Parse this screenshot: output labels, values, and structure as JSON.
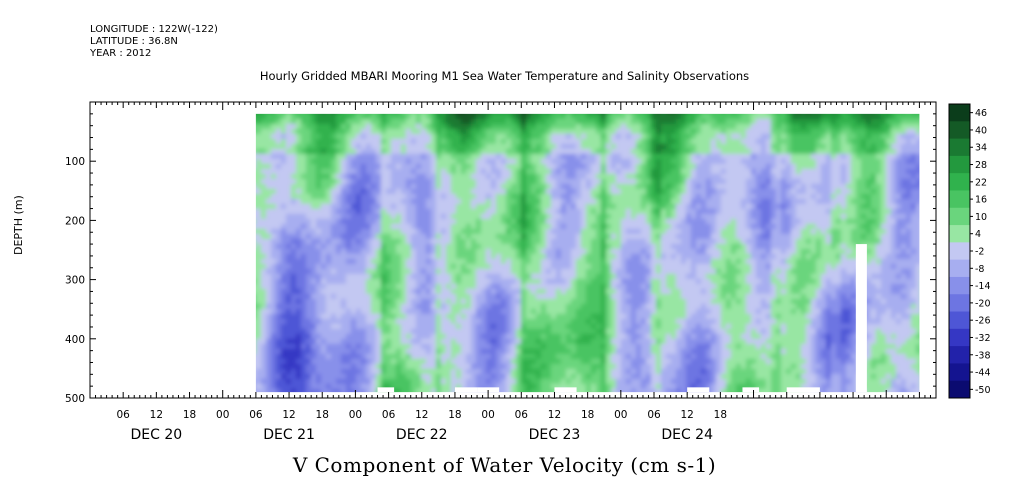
{
  "header": {
    "longitude": "LONGITUDE : 122W(-122)",
    "latitude": "LATITUDE : 36.8N",
    "year": "YEAR : 2012"
  },
  "chart_data": {
    "type": "heatmap",
    "title": "Hourly Gridded MBARI Mooring M1 Sea Water Temperature and Salinity Observations",
    "xlabel": "V Component of Water Velocity (cm s-1)",
    "ylabel": "DEPTH (m)",
    "ylim": [
      500,
      0
    ],
    "y_ticks": [
      100,
      200,
      300,
      400,
      500
    ],
    "x_hour_ticks": [
      "06",
      "12",
      "18",
      "00",
      "06",
      "12",
      "18",
      "00",
      "06",
      "12",
      "18",
      "00",
      "06",
      "12",
      "18",
      "00",
      "06",
      "12",
      "18"
    ],
    "x_day_labels": [
      "DEC 20",
      "DEC 21",
      "DEC 22",
      "DEC 23",
      "DEC 24"
    ],
    "colorbar": {
      "levels": [
        "46",
        "40",
        "34",
        "28",
        "22",
        "16",
        "10",
        "4",
        "-2",
        "-8",
        "-14",
        "-20",
        "-26",
        "-32",
        "-38",
        "-44",
        "-50"
      ],
      "colors": [
        "#0b3d1b",
        "#145a26",
        "#1a7a32",
        "#23993e",
        "#30b24d",
        "#49c462",
        "#6ad57d",
        "#98e6a3",
        "#c3c8f2",
        "#a7aef0",
        "#8890ea",
        "#6d75e2",
        "#4e56d6",
        "#3537c4",
        "#2222aa",
        "#141490",
        "#0b0b70"
      ]
    },
    "data_window": {
      "x_hours": [
        30,
        150
      ],
      "depth": [
        20,
        490
      ]
    },
    "data_gaps": [
      {
        "x_hours": [
          138.5,
          140.5
        ],
        "depth": [
          240,
          490
        ]
      }
    ]
  }
}
